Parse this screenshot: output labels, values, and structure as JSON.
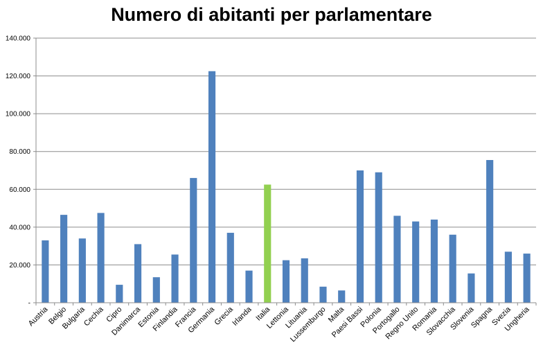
{
  "chart_data": {
    "type": "bar",
    "title": "Numero di abitanti per parlamentare",
    "xlabel": "",
    "ylabel": "",
    "ylim": [
      0,
      140000
    ],
    "y_ticks": [
      0,
      20000,
      40000,
      60000,
      80000,
      100000,
      120000,
      140000
    ],
    "y_tick_labels": [
      "-",
      "20.000",
      "40.000",
      "60.000",
      "80.000",
      "100.000",
      "120.000",
      "140.000"
    ],
    "grid": true,
    "legend": "none",
    "categories": [
      "Austria",
      "Belgio",
      "Bulgaria",
      "Cechia",
      "Cipro",
      "Danimarca",
      "Estonia",
      "Finlandia",
      "Francia",
      "Germania",
      "Grecia",
      "Irlanda",
      "Italia",
      "Lettonia",
      "Lituania",
      "Lussemburgo",
      "Malta",
      "Paesi Bassi",
      "Polonia",
      "Portogallo",
      "Regno Unito",
      "Romania",
      "Slovacchia",
      "Slovenia",
      "Spagna",
      "Svezia",
      "Ungheria"
    ],
    "values": [
      33000,
      46500,
      34000,
      47500,
      9500,
      31000,
      13500,
      25500,
      66000,
      122500,
      37000,
      17000,
      62500,
      22500,
      23500,
      8500,
      6500,
      70000,
      69000,
      46000,
      43000,
      44000,
      36000,
      15500,
      75500,
      27000,
      26000
    ],
    "colors": {
      "default": "#4F81BD",
      "highlight": "#92D050"
    },
    "highlight_category": "Italia"
  }
}
